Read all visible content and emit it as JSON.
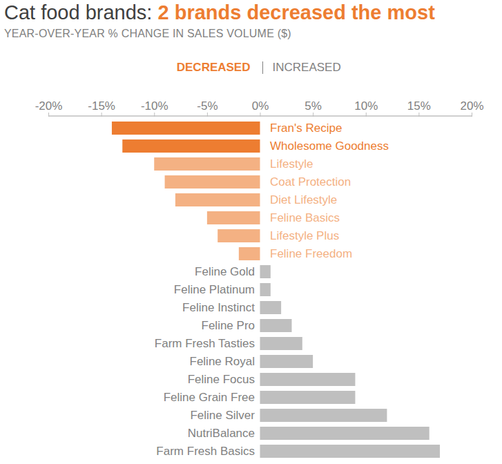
{
  "chart_data": {
    "type": "bar",
    "orientation": "horizontal",
    "title": "Cat food brands: 2 brands decreased the most",
    "subtitle": "YEAR-OVER-YEAR % CHANGE IN SALES VOLUME ($)",
    "annotations": [
      "DECREASED",
      "INCREASED"
    ],
    "categories": [
      "Fran's Recipe",
      "Wholesome Goodness",
      "Lifestyle",
      "Coat Protection",
      "Diet Lifestyle",
      "Feline Basics",
      "Lifestyle Plus",
      "Feline Freedom",
      "Feline Gold",
      "Feline Platinum",
      "Feline Instinct",
      "Feline Pro",
      "Farm Fresh Tasties",
      "Feline Royal",
      "Feline Focus",
      "Feline Grain Free",
      "Feline Silver",
      "NutriBalance",
      "Farm Fresh Basics"
    ],
    "values": [
      -14,
      -13,
      -10,
      -9,
      -8,
      -5,
      -4,
      -2,
      1,
      1,
      2,
      3,
      4,
      5,
      9,
      9,
      12,
      16,
      17
    ],
    "colors": [
      "#ed7d31",
      "#ed7d31",
      "#f4b183",
      "#f4b183",
      "#f4b183",
      "#f4b183",
      "#f4b183",
      "#f4b183",
      "#bfbfbf",
      "#bfbfbf",
      "#bfbfbf",
      "#bfbfbf",
      "#bfbfbf",
      "#bfbfbf",
      "#bfbfbf",
      "#bfbfbf",
      "#bfbfbf",
      "#bfbfbf",
      "#bfbfbf"
    ],
    "xlim": [
      -20,
      20
    ],
    "xticks": [
      {
        "value": -20,
        "label": "-20%"
      },
      {
        "value": -15,
        "label": "-15%"
      },
      {
        "value": -10,
        "label": "-10%"
      },
      {
        "value": -5,
        "label": "-5%"
      },
      {
        "value": 0,
        "label": "0%"
      },
      {
        "value": 5,
        "label": "5%"
      },
      {
        "value": 10,
        "label": "10%"
      },
      {
        "value": 15,
        "label": "15%"
      },
      {
        "value": 20,
        "label": "20%"
      }
    ],
    "grid": false
  }
}
